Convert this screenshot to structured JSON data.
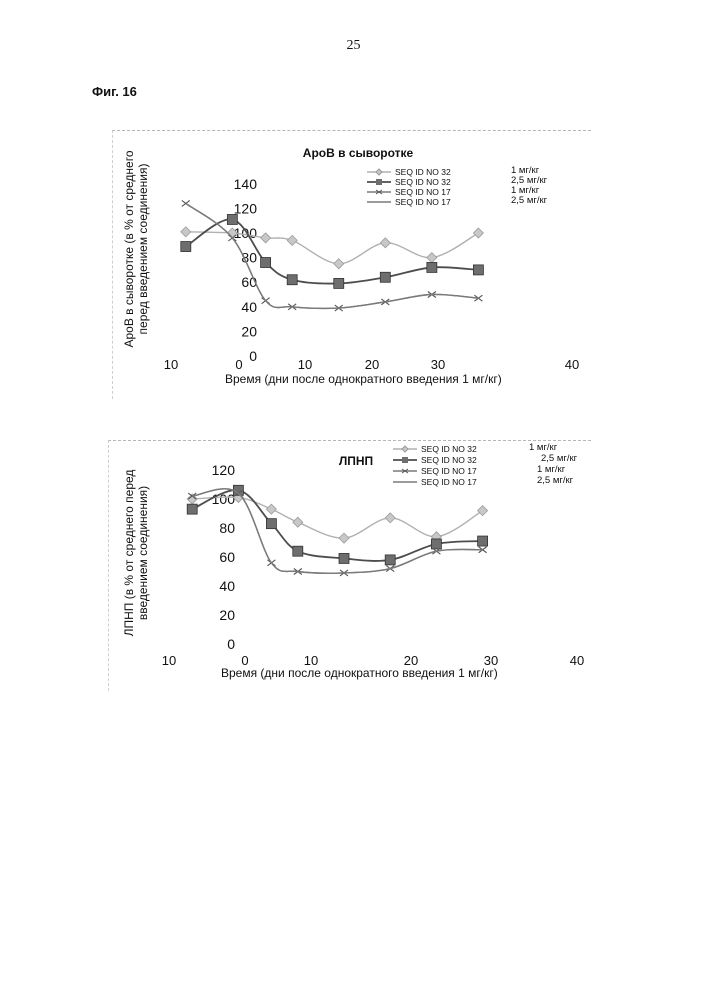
{
  "page": {
    "number": "25",
    "figure_label": "Фиг. 16"
  },
  "colors": {
    "seq32_low": "#aaaaaa",
    "seq32_high": "#555555",
    "seq17_low": "#8a8a8a",
    "seq17_high": "#444444"
  },
  "chart_data": [
    {
      "type": "line",
      "title": "АроВ в сыворотке",
      "xlabel": "Время (дни после однократного введения 1 мг/кг)",
      "ylabel_lines": [
        "АроВ в сыворотке (в % от среднего",
        "перед введением соединения)"
      ],
      "x_ticks": [
        "10",
        "0",
        "10",
        "20",
        "30",
        "40"
      ],
      "y_ticks": [
        "0",
        "20",
        "40",
        "60",
        "80",
        "100",
        "120",
        "140"
      ],
      "xlim": [
        -10,
        40
      ],
      "ylim": [
        0,
        140
      ],
      "legend": [
        {
          "label": "SEQ ID NO 32",
          "dose": "1 мг/кг"
        },
        {
          "label": "SEQ ID NO 32",
          "dose": "2,5 мг/кг"
        },
        {
          "label": "SEQ ID NO 17",
          "dose": "1 мг/кг"
        },
        {
          "label": "SEQ ID NO 17",
          "dose": "2,5 мг/кг"
        }
      ],
      "series": [
        {
          "marker": "diamond",
          "style": "light",
          "x": [
            -8,
            -1,
            4,
            8,
            15,
            22,
            29,
            36
          ],
          "y": [
            101,
            100,
            96,
            94,
            75,
            92,
            80,
            100
          ]
        },
        {
          "marker": "square",
          "style": "dark",
          "x": [
            -8,
            -1,
            4,
            8,
            15,
            22,
            29,
            36
          ],
          "y": [
            89,
            111,
            76,
            62,
            59,
            64,
            72,
            70
          ]
        },
        {
          "marker": "x",
          "style": "medium",
          "x": [
            -8,
            -1,
            4,
            8,
            15,
            22,
            29,
            36
          ],
          "y": [
            124,
            96,
            45,
            40,
            39,
            44,
            50,
            47
          ]
        },
        {
          "marker": "none",
          "style": "medium",
          "x": [
            -8,
            -1,
            4,
            8,
            15,
            22,
            29,
            36
          ],
          "y": [
            124,
            96,
            45,
            40,
            39,
            44,
            50,
            47
          ]
        }
      ]
    },
    {
      "type": "line",
      "title": "ЛПНП",
      "xlabel": "Время (дни после однократного введения 1 мг/кг)",
      "ylabel_lines": [
        "ЛПНП (в % от среднего перед",
        "введением соединения)"
      ],
      "x_ticks": [
        "10",
        "0",
        "10",
        "20",
        "30",
        "40"
      ],
      "y_ticks": [
        "0",
        "20",
        "40",
        "60",
        "80",
        "100",
        "120"
      ],
      "xlim": [
        -10,
        40
      ],
      "ylim": [
        0,
        120
      ],
      "legend": [
        {
          "label": "SEQ ID NO 32",
          "dose": "1 мг/кг"
        },
        {
          "label": "SEQ ID NO 32",
          "dose": "2,5 мг/кг"
        },
        {
          "label": "SEQ ID NO 17",
          "dose": "1 мг/кг"
        },
        {
          "label": "SEQ ID NO 17",
          "dose": "2,5 мг/кг"
        }
      ],
      "series": [
        {
          "marker": "diamond",
          "style": "light",
          "x": [
            -8,
            -1,
            4,
            8,
            15,
            22,
            29,
            36
          ],
          "y": [
            100,
            101,
            93,
            84,
            73,
            87,
            74,
            92
          ]
        },
        {
          "marker": "square",
          "style": "dark",
          "x": [
            -8,
            -1,
            4,
            8,
            15,
            22,
            29,
            36
          ],
          "y": [
            93,
            106,
            83,
            64,
            59,
            58,
            69,
            71
          ]
        },
        {
          "marker": "x",
          "style": "medium",
          "x": [
            -8,
            -1,
            4,
            8,
            15,
            22,
            29,
            36
          ],
          "y": [
            102,
            104,
            56,
            50,
            49,
            52,
            64,
            65
          ]
        },
        {
          "marker": "none",
          "style": "medium",
          "x": [
            -8,
            -1,
            4,
            8,
            15,
            22,
            29,
            36
          ],
          "y": [
            102,
            104,
            56,
            50,
            49,
            52,
            64,
            65
          ]
        }
      ]
    }
  ]
}
